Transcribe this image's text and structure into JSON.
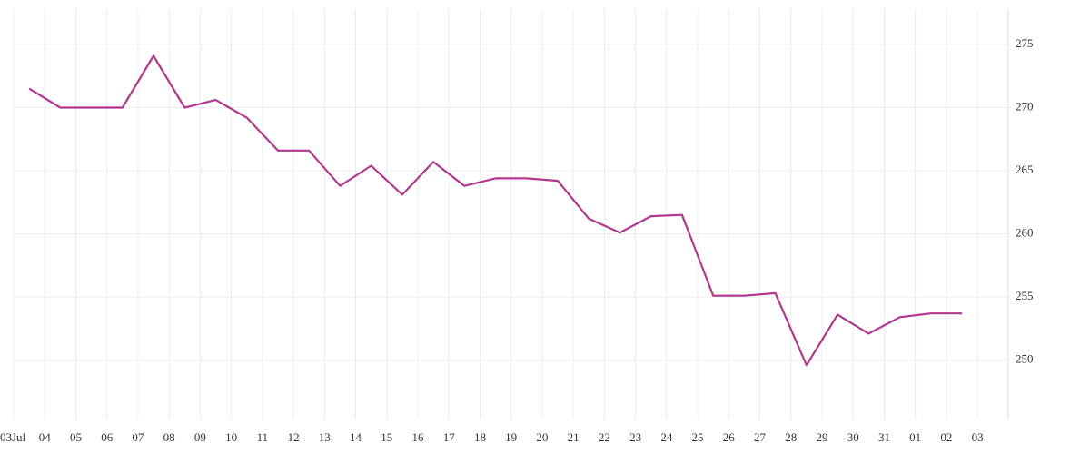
{
  "chart_data": {
    "type": "line",
    "categories": [
      "03Jul",
      "04",
      "05",
      "06",
      "07",
      "08",
      "09",
      "10",
      "11",
      "12",
      "13",
      "14",
      "15",
      "16",
      "17",
      "18",
      "19",
      "20",
      "21",
      "22",
      "23",
      "24",
      "25",
      "26",
      "27",
      "28",
      "29",
      "30",
      "31",
      "01",
      "02",
      "03"
    ],
    "series": [
      {
        "color": "#b0388f",
        "values": [
          271.5,
          270.0,
          270.0,
          270.0,
          274.1,
          270.0,
          270.6,
          269.2,
          266.6,
          266.6,
          263.8,
          265.4,
          263.1,
          265.7,
          263.8,
          264.4,
          264.4,
          264.2,
          261.2,
          260.1,
          261.4,
          261.5,
          255.1,
          255.1,
          255.3,
          249.6,
          253.6,
          252.1,
          253.4,
          253.7,
          253.7,
          null
        ]
      }
    ],
    "ylim": [
      245.3,
      277.8
    ],
    "yticks": [
      250,
      255,
      260,
      265,
      270,
      275
    ],
    "grid": true
  }
}
